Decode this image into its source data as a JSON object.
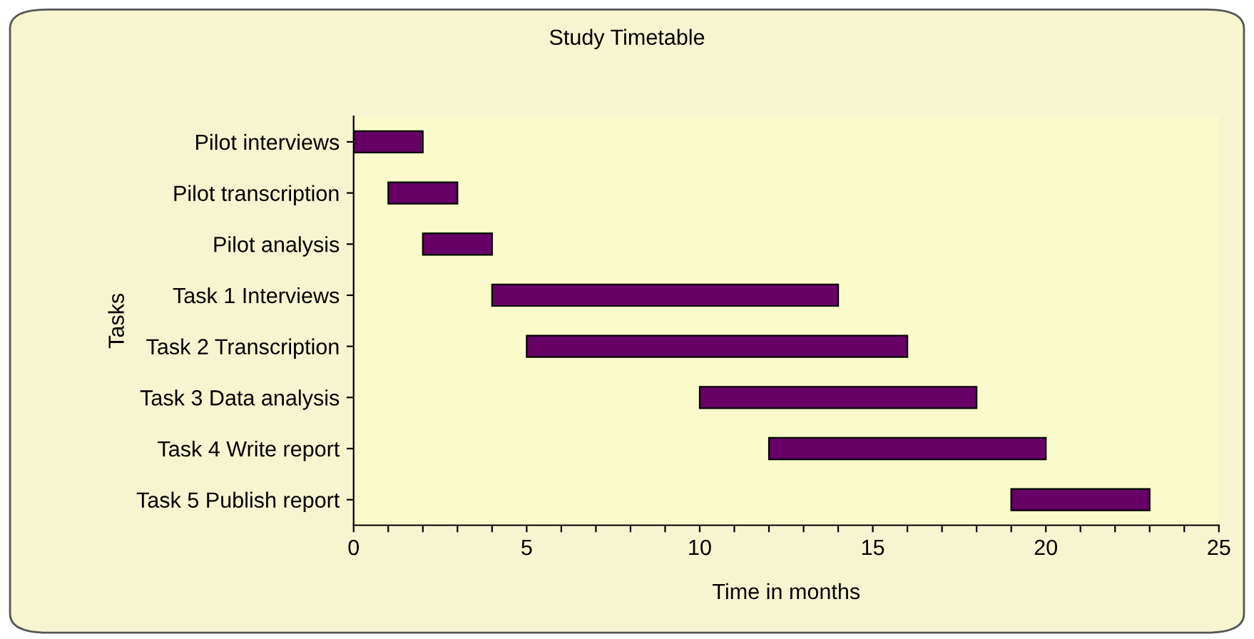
{
  "chart_data": {
    "type": "bar",
    "orientation": "horizontal",
    "title": "Study Timetable",
    "xlabel": "Time in months",
    "ylabel": "Tasks",
    "categories": [
      "Pilot interviews",
      "Pilot transcription",
      "Pilot analysis",
      "Task 1 Interviews",
      "Task 2 Transcription",
      "Task 3 Data analysis",
      "Task 4 Write report",
      "Task 5 Publish report"
    ],
    "base": [
      0,
      1,
      2,
      4,
      5,
      10,
      12,
      19
    ],
    "values": [
      2,
      2,
      2,
      10,
      11,
      8,
      8,
      4
    ],
    "color": "#660066",
    "xlim": [
      0,
      25
    ],
    "xticks": [
      0,
      {
        "value": 1,
        "label": null
      },
      {
        "value": 2,
        "label": null
      },
      {
        "value": 3,
        "label": null
      },
      {
        "value": 4,
        "label": null
      },
      5,
      {
        "value": 6,
        "label": null
      },
      {
        "value": 7,
        "label": null
      },
      {
        "value": 8,
        "label": null
      },
      {
        "value": 9,
        "label": null
      },
      10,
      {
        "value": 11,
        "label": null
      },
      {
        "value": 12,
        "label": null
      },
      {
        "value": 13,
        "label": null
      },
      {
        "value": 14,
        "label": null
      },
      15,
      {
        "value": 16,
        "label": null
      },
      {
        "value": 17,
        "label": null
      },
      {
        "value": 18,
        "label": null
      },
      {
        "value": 19,
        "label": null
      },
      20,
      {
        "value": 21,
        "label": null
      },
      {
        "value": 22,
        "label": null
      },
      {
        "value": 23,
        "label": null
      },
      {
        "value": 24,
        "label": null
      },
      25
    ],
    "grid": false,
    "legend": false
  }
}
